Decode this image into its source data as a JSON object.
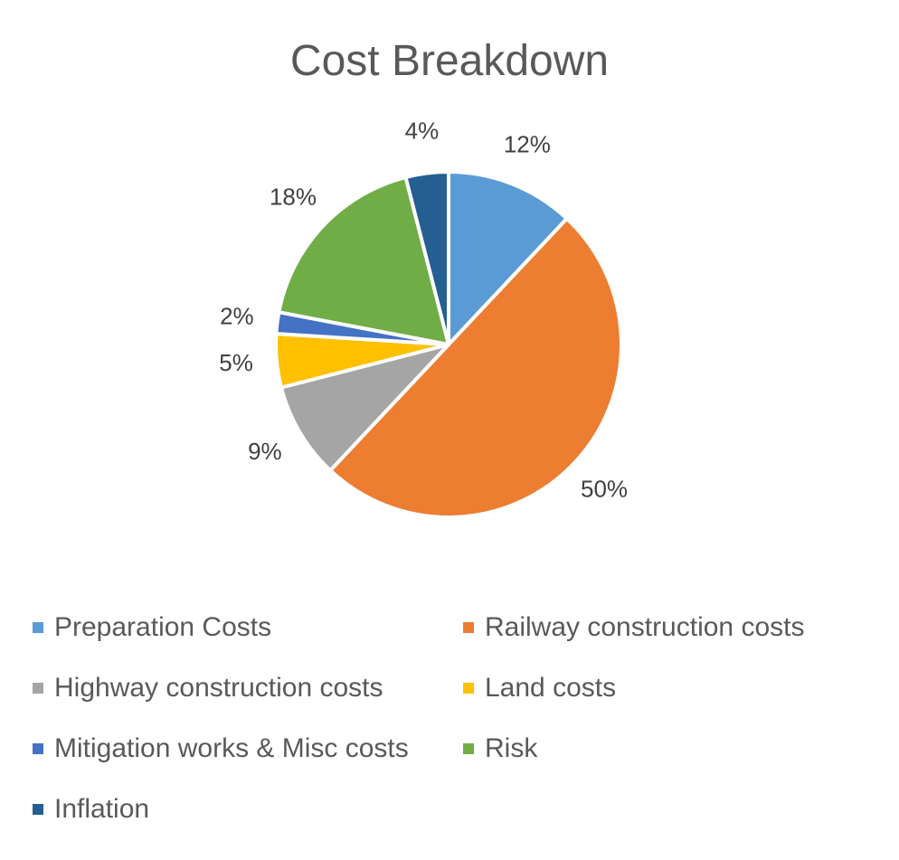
{
  "chart_data": {
    "type": "pie",
    "title": "Cost Breakdown",
    "legend_position": "bottom",
    "slices": [
      {
        "label": "Preparation Costs",
        "value": 12,
        "display": "12%",
        "color": "#5B9BD5"
      },
      {
        "label": "Railway construction costs",
        "value": 50,
        "display": "50%",
        "color": "#ED7D31"
      },
      {
        "label": "Highway construction costs",
        "value": 9,
        "display": "9%",
        "color": "#A5A5A5"
      },
      {
        "label": "Land costs",
        "value": 5,
        "display": "5%",
        "color": "#FFC000"
      },
      {
        "label": "Mitigation works & Misc costs",
        "value": 2,
        "display": "2%",
        "color": "#4472C4"
      },
      {
        "label": "Risk",
        "value": 18,
        "display": "18%",
        "color": "#70AD47"
      },
      {
        "label": "Inflation",
        "value": 4,
        "display": "4%",
        "color": "#255E91"
      }
    ]
  }
}
